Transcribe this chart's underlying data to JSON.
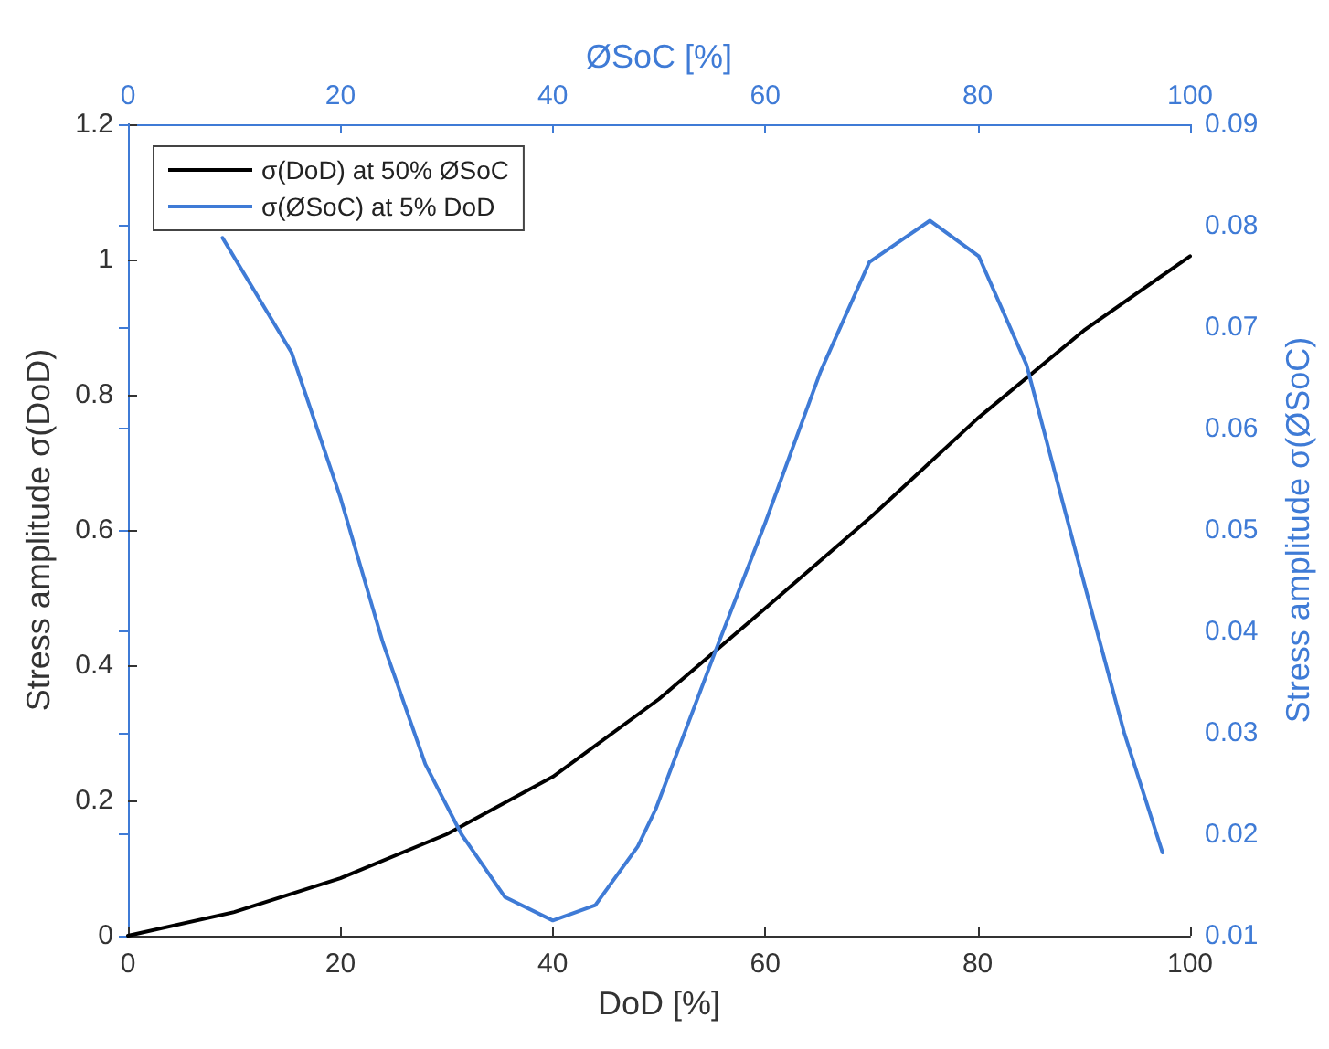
{
  "chart_data": {
    "type": "line",
    "xlabel": "DoD [%]",
    "x2label": "ØSoC [%]",
    "ylabel": "Stress amplitude σ(DoD)",
    "y2label": "Stress amplitude σ(ØSoC)",
    "xlim": [
      0,
      100
    ],
    "xticks": [
      0,
      20,
      40,
      60,
      80,
      100
    ],
    "x2lim": [
      0,
      100
    ],
    "x2ticks": [
      0,
      20,
      40,
      60,
      80,
      100
    ],
    "ylim": [
      0,
      1.2
    ],
    "yticks": [
      0,
      0.2,
      0.4,
      0.6,
      0.8,
      1,
      1.2
    ],
    "y2lim": [
      0.01,
      0.09
    ],
    "y2ticks": [
      0.01,
      0.02,
      0.03,
      0.04,
      0.05,
      0.06,
      0.07,
      0.08,
      0.09
    ],
    "grid": false,
    "legend": "top left",
    "marker": "none",
    "line_style": "solid",
    "series": [
      {
        "name": "σ(DoD) at 50% ØSoC",
        "color": "#000000",
        "x": [
          0,
          10,
          20,
          30,
          40,
          50,
          60,
          70,
          80,
          90,
          100
        ],
        "values": [
          0,
          0.035,
          0.085,
          0.15,
          0.235,
          0.35,
          0.484,
          0.62,
          0.765,
          0.895,
          1.005
        ]
      },
      {
        "name": "σ(ØSoC) at 5% DoD",
        "color": "#3f7bd6",
        "axis": "y2",
        "x": [
          8.9,
          15.4,
          20,
          24,
          28,
          31.4,
          35.5,
          40,
          44,
          48,
          49.7,
          55.4,
          60,
          65.2,
          69.8,
          75.5,
          80.1,
          84.6,
          89.2,
          93.8,
          97.4
        ],
        "values": [
          0.0788,
          0.0675,
          0.0532,
          0.0389,
          0.0269,
          0.02,
          0.0138,
          0.0115,
          0.013,
          0.0188,
          0.0225,
          0.0383,
          0.0507,
          0.0656,
          0.0764,
          0.0805,
          0.077,
          0.0663,
          0.048,
          0.03,
          0.0182
        ]
      }
    ]
  }
}
